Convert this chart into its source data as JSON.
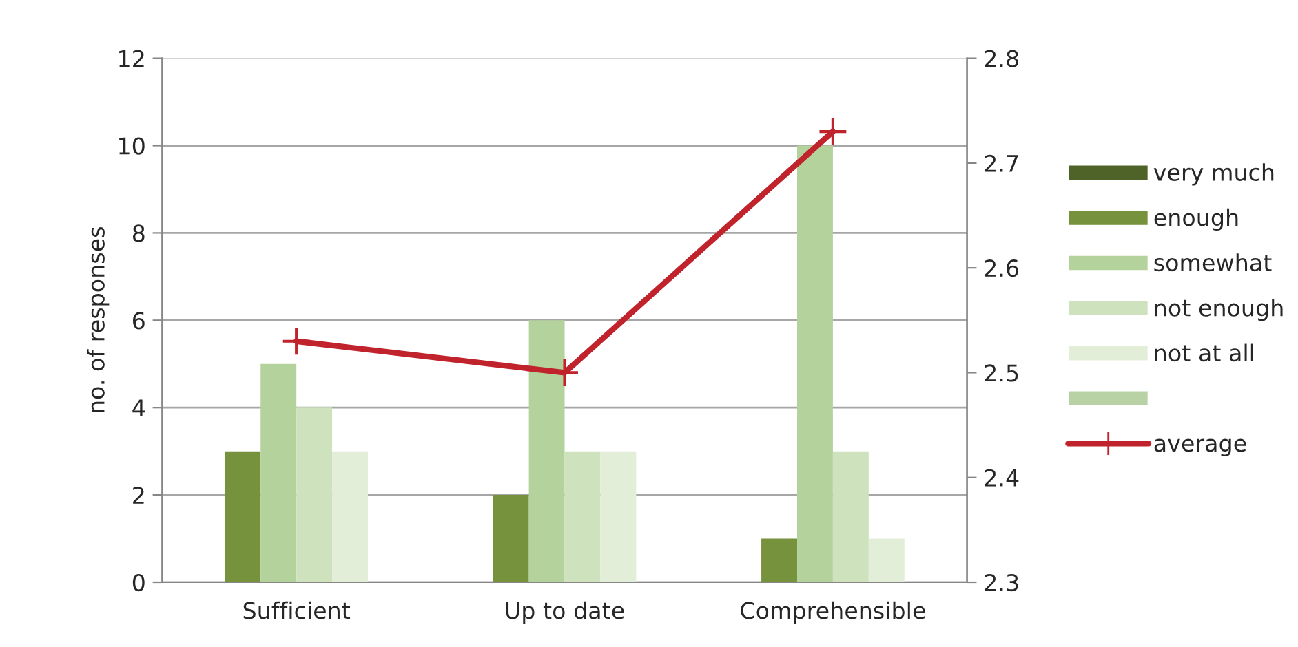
{
  "chart_data": {
    "type": "bar",
    "ylabel": "no. of responses",
    "categories": [
      "Sufficient",
      "Up to date",
      "Comprehensible"
    ],
    "series": [
      {
        "name": "very much",
        "color": "#4f6228",
        "values": [
          0,
          0,
          0
        ]
      },
      {
        "name": "enough",
        "color": "#76923c",
        "values": [
          3,
          2,
          1
        ]
      },
      {
        "name": "somewhat",
        "color": "#b4d29c",
        "values": [
          5,
          6,
          10
        ]
      },
      {
        "name": "not enough",
        "color": "#cde2bd",
        "values": [
          4,
          3,
          3
        ]
      },
      {
        "name": "not at all",
        "color": "#e2eed8",
        "values": [
          3,
          3,
          1
        ]
      },
      {
        "color": "#b8d2a6",
        "values": [
          0,
          0,
          0
        ]
      },
      {
        "name": "average",
        "type": "line",
        "axis": "y2",
        "color": "#c0232c",
        "marker": "cross",
        "values": [
          2.53,
          2.5,
          2.73
        ]
      }
    ],
    "ylim": [
      0,
      12
    ],
    "yticks": [
      0,
      2,
      4,
      6,
      8,
      10,
      12
    ],
    "y2lim": [
      2.3,
      2.8
    ],
    "y2ticks": [
      2.3,
      2.4,
      2.5,
      2.6,
      2.7,
      2.8
    ],
    "grid": "y",
    "legend": "right"
  }
}
